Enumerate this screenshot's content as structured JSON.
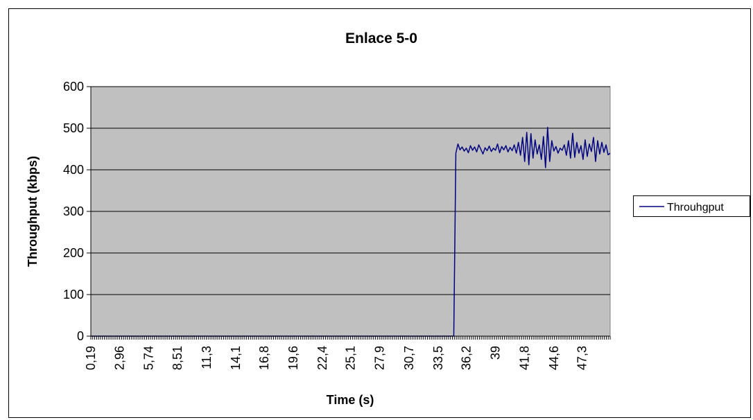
{
  "chart_data": {
    "type": "line",
    "title": "Enlace 5-0",
    "xlabel": "Time  (s)",
    "ylabel": "Throughput (kbps)",
    "ylim": [
      0,
      600
    ],
    "yticks": [
      0,
      100,
      200,
      300,
      400,
      500,
      600
    ],
    "x_start": 0.19,
    "x_end": 50.0,
    "xtick_labels": [
      "0,19",
      "2,96",
      "5,74",
      "8,51",
      "11,3",
      "14,1",
      "16,8",
      "19,6",
      "22,4",
      "25,1",
      "27,9",
      "30,7",
      "33,5",
      "36,2",
      "39",
      "41,8",
      "44,6",
      "47,3"
    ],
    "xtick_values": [
      0.19,
      2.96,
      5.74,
      8.51,
      11.3,
      14.1,
      16.8,
      19.6,
      22.4,
      25.1,
      27.9,
      30.7,
      33.5,
      36.2,
      39.0,
      41.8,
      44.6,
      47.3
    ],
    "grid": true,
    "plot_background": "#c0c0c0",
    "series": [
      {
        "name": "Throuhgput",
        "color": "#000080",
        "points": [
          [
            0.19,
            0
          ],
          [
            35.0,
            0
          ],
          [
            35.2,
            440
          ],
          [
            35.4,
            462
          ],
          [
            35.6,
            448
          ],
          [
            35.8,
            455
          ],
          [
            36.0,
            445
          ],
          [
            36.2,
            452
          ],
          [
            36.4,
            441
          ],
          [
            36.6,
            458
          ],
          [
            36.8,
            447
          ],
          [
            37.0,
            455
          ],
          [
            37.2,
            443
          ],
          [
            37.4,
            460
          ],
          [
            37.6,
            449
          ],
          [
            37.8,
            438
          ],
          [
            38.0,
            453
          ],
          [
            38.2,
            446
          ],
          [
            38.4,
            457
          ],
          [
            38.6,
            444
          ],
          [
            38.8,
            452
          ],
          [
            39.0,
            447
          ],
          [
            39.2,
            462
          ],
          [
            39.4,
            441
          ],
          [
            39.6,
            456
          ],
          [
            39.8,
            448
          ],
          [
            40.0,
            458
          ],
          [
            40.2,
            443
          ],
          [
            40.4,
            454
          ],
          [
            40.6,
            446
          ],
          [
            40.8,
            460
          ],
          [
            41.0,
            440
          ],
          [
            41.2,
            466
          ],
          [
            41.4,
            435
          ],
          [
            41.6,
            478
          ],
          [
            41.8,
            420
          ],
          [
            42.0,
            490
          ],
          [
            42.2,
            412
          ],
          [
            42.4,
            487
          ],
          [
            42.6,
            428
          ],
          [
            42.8,
            472
          ],
          [
            43.0,
            438
          ],
          [
            43.2,
            460
          ],
          [
            43.4,
            425
          ],
          [
            43.6,
            480
          ],
          [
            43.8,
            405
          ],
          [
            44.0,
            502
          ],
          [
            44.2,
            420
          ],
          [
            44.4,
            470
          ],
          [
            44.6,
            445
          ],
          [
            44.8,
            456
          ],
          [
            45.0,
            440
          ],
          [
            45.2,
            452
          ],
          [
            45.4,
            447
          ],
          [
            45.6,
            460
          ],
          [
            45.8,
            435
          ],
          [
            46.0,
            470
          ],
          [
            46.2,
            428
          ],
          [
            46.4,
            488
          ],
          [
            46.6,
            430
          ],
          [
            46.8,
            466
          ],
          [
            47.0,
            440
          ],
          [
            47.2,
            458
          ],
          [
            47.4,
            425
          ],
          [
            47.6,
            472
          ],
          [
            47.8,
            432
          ],
          [
            48.0,
            462
          ],
          [
            48.2,
            444
          ],
          [
            48.4,
            478
          ],
          [
            48.6,
            420
          ],
          [
            48.8,
            470
          ],
          [
            49.0,
            438
          ],
          [
            49.2,
            466
          ],
          [
            49.4,
            442
          ],
          [
            49.6,
            460
          ],
          [
            49.8,
            436
          ],
          [
            50.0,
            440
          ]
        ]
      }
    ],
    "legend": {
      "position": "right",
      "entries": [
        "Throuhgput"
      ]
    }
  }
}
